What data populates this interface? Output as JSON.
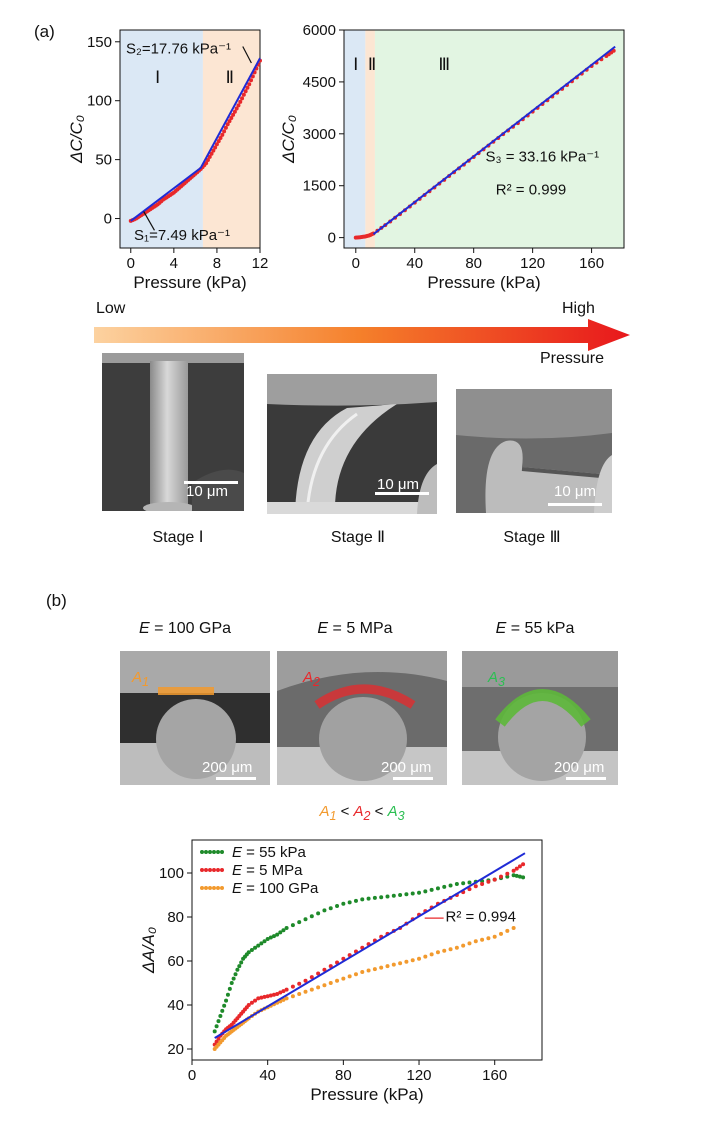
{
  "panel_a_label": "(a)",
  "panel_b_label": "(b)",
  "arrow": {
    "low": "Low",
    "high": "High",
    "label": "Pressure"
  },
  "stages": [
    {
      "caption": "Stage Ⅰ",
      "scale": "10 μm"
    },
    {
      "caption": "Stage Ⅱ",
      "scale": "10 μm"
    },
    {
      "caption": "Stage Ⅲ",
      "scale": "10 μm"
    }
  ],
  "materials": [
    {
      "modulus_prefix": "E",
      "modulus_value": "= 100 GPa",
      "area_label": "A1",
      "area_sub": "1",
      "scale": "200 μm",
      "color": "#f29a2e"
    },
    {
      "modulus_prefix": "E",
      "modulus_value": "= 5 MPa",
      "area_label": "A2",
      "area_sub": "2",
      "scale": "200 μm",
      "color": "#e8282b"
    },
    {
      "modulus_prefix": "E",
      "modulus_value": "= 55 kPa",
      "area_label": "A3",
      "area_sub": "3",
      "scale": "200 μm",
      "color": "#2bbf52"
    }
  ],
  "comparison": {
    "a1": "A",
    "s1": "1",
    "lt1": " < ",
    "a2": "A",
    "s2": "2",
    "lt2": " < ",
    "a3": "A",
    "s3": "3"
  },
  "chart_data": [
    {
      "id": "chart-a-left",
      "type": "line",
      "xlabel": "Pressure (kPa)",
      "ylabel": "ΔC/C₀",
      "xlim": [
        -1,
        12
      ],
      "ylim": [
        -25,
        160
      ],
      "xticks": [
        0,
        4,
        8,
        12
      ],
      "yticks": [
        0,
        50,
        100,
        150
      ],
      "regions": [
        {
          "name": "Ⅰ",
          "from": -1,
          "to": 6.7,
          "color": "#dbe8f5"
        },
        {
          "name": "Ⅱ",
          "from": 6.7,
          "to": 12,
          "color": "#fce6d3"
        }
      ],
      "annotations": {
        "s1": "S₁=7.49 kPa⁻¹",
        "s2": "S₂=17.76 kPa⁻¹"
      },
      "series": [
        {
          "style": "dotted-red",
          "x": [
            0,
            0.5,
            1,
            1.5,
            2,
            2.5,
            3,
            3.5,
            4,
            4.5,
            5,
            5.5,
            6,
            6.5,
            7,
            7.5,
            8,
            8.5,
            9,
            9.5,
            10,
            10.5,
            11,
            11.5,
            12
          ],
          "y": [
            -2,
            0,
            3,
            6,
            9,
            12,
            16,
            19,
            22,
            26,
            30,
            34,
            38,
            42,
            47,
            55,
            63,
            71,
            80,
            88,
            96,
            105,
            114,
            124,
            134
          ]
        },
        {
          "style": "fit-blue",
          "x": [
            0,
            6.5,
            12
          ],
          "y": [
            -2,
            43,
            136
          ]
        }
      ]
    },
    {
      "id": "chart-a-right",
      "type": "line",
      "xlabel": "Pressure (kPa)",
      "ylabel": "ΔC/C₀",
      "xlim": [
        -8,
        182
      ],
      "ylim": [
        -300,
        6000
      ],
      "xticks": [
        0,
        40,
        80,
        120,
        160
      ],
      "yticks": [
        0,
        1500,
        3000,
        4500,
        6000
      ],
      "regions": [
        {
          "name": "Ⅰ",
          "from": -8,
          "to": 6.5,
          "color": "#dbe8f5"
        },
        {
          "name": "Ⅱ",
          "from": 6.5,
          "to": 13,
          "color": "#fce6d3"
        },
        {
          "name": "Ⅲ",
          "from": 13,
          "to": 182,
          "color": "#e2f5e2"
        }
      ],
      "annotations": {
        "s3": "S₃ = 33.16 kPa⁻¹",
        "r2": "R² = 0.999"
      },
      "series": [
        {
          "style": "dotted-red",
          "x": [
            0,
            3,
            6,
            9,
            12,
            20,
            30,
            40,
            50,
            60,
            70,
            80,
            90,
            100,
            110,
            120,
            130,
            140,
            150,
            160,
            170,
            175
          ],
          "y": [
            0,
            10,
            30,
            60,
            120,
            360,
            680,
            1010,
            1340,
            1670,
            2000,
            2330,
            2660,
            2990,
            3310,
            3640,
            3970,
            4300,
            4630,
            4960,
            5250,
            5400
          ]
        },
        {
          "style": "fit-blue",
          "x": [
            12,
            176
          ],
          "y": [
            100,
            5520
          ]
        }
      ]
    },
    {
      "id": "chart-b",
      "type": "scatter",
      "xlabel": "Pressure (kPa)",
      "ylabel": "ΔA/A₀",
      "xlim": [
        0,
        185
      ],
      "ylim": [
        15,
        115
      ],
      "xticks": [
        0,
        40,
        80,
        120,
        160
      ],
      "yticks": [
        20,
        40,
        60,
        80,
        100
      ],
      "legend_position": "top-left",
      "annotations": {
        "r2": "R² = 0.994"
      },
      "series": [
        {
          "name_prefix": "E",
          "name": "= 55 kPa",
          "color": "#1e8a2a",
          "x": [
            12,
            15,
            18,
            21,
            24,
            27,
            30,
            35,
            40,
            45,
            50,
            60,
            70,
            80,
            90,
            100,
            110,
            120,
            130,
            140,
            150,
            160,
            170,
            175
          ],
          "y": [
            28,
            35,
            42,
            50,
            56,
            61,
            64,
            67,
            70,
            72,
            75,
            79,
            83,
            86,
            88,
            89,
            90,
            91,
            93,
            95,
            96,
            97,
            99,
            98
          ]
        },
        {
          "name_prefix": "E",
          "name": "= 5 MPa",
          "color": "#e8282b",
          "x": [
            12,
            15,
            18,
            21,
            24,
            27,
            30,
            35,
            40,
            45,
            50,
            60,
            70,
            80,
            90,
            100,
            110,
            120,
            130,
            140,
            150,
            160,
            170,
            175
          ],
          "y": [
            22,
            26,
            29,
            31,
            34,
            37,
            40,
            43,
            44,
            45,
            47,
            51,
            56,
            61,
            66,
            71,
            75,
            81,
            86,
            90,
            94,
            97,
            101,
            104
          ]
        },
        {
          "name_prefix": "E",
          "name": "= 100 GPa",
          "color": "#f29a2e",
          "x": [
            12,
            15,
            18,
            21,
            24,
            27,
            30,
            35,
            40,
            45,
            50,
            60,
            70,
            80,
            90,
            100,
            110,
            120,
            130,
            140,
            150,
            160,
            170
          ],
          "y": [
            20,
            23,
            26,
            28,
            30,
            32,
            34,
            37,
            39,
            41,
            43,
            46,
            49,
            52,
            55,
            57,
            59,
            61,
            64,
            66,
            69,
            71,
            75
          ]
        },
        {
          "style": "fit-blue",
          "x": [
            12,
            176
          ],
          "y": [
            25,
            109
          ]
        }
      ]
    }
  ]
}
